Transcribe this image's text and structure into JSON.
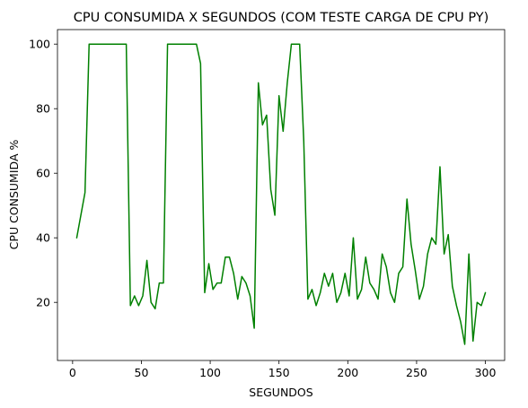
{
  "chart_data": {
    "type": "line",
    "title": "CPU CONSUMIDA X SEGUNDOS (COM TESTE CARGA DE CPU PY)",
    "xlabel": "SEGUNDOS",
    "ylabel": "CPU CONSUMIDA %",
    "xlim": [
      -11,
      314
    ],
    "ylim": [
      2,
      104.5
    ],
    "xticks": [
      0,
      50,
      100,
      150,
      200,
      250,
      300
    ],
    "yticks": [
      20,
      40,
      60,
      80,
      100
    ],
    "grid": false,
    "legend": "none",
    "line_color": "#008000",
    "series": [
      {
        "x": [
          3,
          9,
          12,
          15,
          18,
          21,
          24,
          27,
          30,
          33,
          36,
          39,
          42,
          45,
          48,
          51,
          54,
          57,
          60,
          63,
          66,
          69,
          72,
          75,
          78,
          81,
          84,
          87,
          90,
          93,
          96,
          99,
          102,
          105,
          108,
          111,
          114,
          117,
          120,
          123,
          126,
          129,
          132,
          135,
          138,
          141,
          144,
          147,
          150,
          153,
          156,
          159,
          162,
          165,
          168,
          171,
          174,
          177,
          180,
          183,
          186,
          189,
          192,
          195,
          198,
          201,
          204,
          207,
          210,
          213,
          216,
          219,
          222,
          225,
          228,
          231,
          234,
          237,
          240,
          243,
          246,
          249,
          252,
          255,
          258,
          261,
          264,
          267,
          270,
          273,
          276,
          279,
          282,
          285,
          288,
          291,
          294,
          297,
          300
        ],
        "y": [
          40,
          54,
          100,
          100,
          100,
          100,
          100,
          100,
          100,
          100,
          100,
          100,
          19,
          22,
          19,
          22,
          33,
          20,
          18,
          26,
          26,
          100,
          100,
          100,
          100,
          100,
          100,
          100,
          100,
          94,
          23,
          32,
          24,
          26,
          26,
          34,
          34,
          29,
          21,
          28,
          26,
          22,
          12,
          88,
          75,
          78,
          55,
          47,
          84,
          73,
          88,
          100,
          100,
          100,
          70,
          21,
          24,
          19,
          23,
          29,
          25,
          29,
          20,
          23,
          29,
          22,
          40,
          21,
          24,
          34,
          26,
          24,
          21,
          35,
          31,
          23,
          20,
          29,
          31,
          52,
          38,
          30,
          21,
          25,
          35,
          40,
          38,
          62,
          35,
          41,
          25,
          19,
          14,
          7,
          35,
          8,
          20,
          19,
          23
        ]
      }
    ]
  }
}
